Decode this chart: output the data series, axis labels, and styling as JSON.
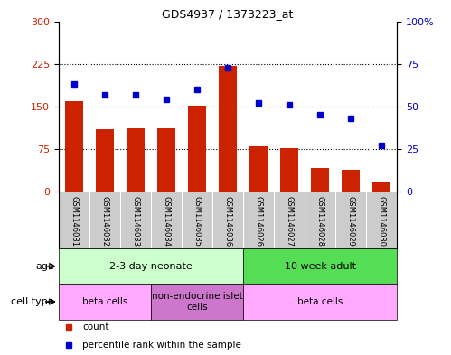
{
  "title": "GDS4937 / 1373223_at",
  "samples": [
    "GSM1146031",
    "GSM1146032",
    "GSM1146033",
    "GSM1146034",
    "GSM1146035",
    "GSM1146036",
    "GSM1146026",
    "GSM1146027",
    "GSM1146028",
    "GSM1146029",
    "GSM1146030"
  ],
  "counts": [
    160,
    110,
    112,
    112,
    152,
    222,
    80,
    76,
    42,
    38,
    18
  ],
  "percentiles": [
    63,
    57,
    57,
    54,
    60,
    73,
    52,
    51,
    45,
    43,
    27
  ],
  "left_ylim": [
    0,
    300
  ],
  "right_ylim": [
    0,
    100
  ],
  "left_yticks": [
    0,
    75,
    150,
    225,
    300
  ],
  "right_yticks": [
    0,
    25,
    50,
    75,
    100
  ],
  "right_yticklabels": [
    "0",
    "25",
    "50",
    "75",
    "100%"
  ],
  "bar_color": "#cc2200",
  "dot_color": "#0000cc",
  "age_groups": [
    {
      "label": "2-3 day neonate",
      "start": 0,
      "end": 6,
      "color": "#ccffcc"
    },
    {
      "label": "10 week adult",
      "start": 6,
      "end": 11,
      "color": "#55dd55"
    }
  ],
  "cell_type_groups": [
    {
      "label": "beta cells",
      "start": 0,
      "end": 3,
      "color": "#ffaaff"
    },
    {
      "label": "non-endocrine islet\ncells",
      "start": 3,
      "end": 6,
      "color": "#cc77cc"
    },
    {
      "label": "beta cells",
      "start": 6,
      "end": 11,
      "color": "#ffaaff"
    }
  ],
  "legend_items": [
    {
      "label": "count",
      "color": "#cc2200"
    },
    {
      "label": "percentile rank within the sample",
      "color": "#0000cc"
    }
  ]
}
